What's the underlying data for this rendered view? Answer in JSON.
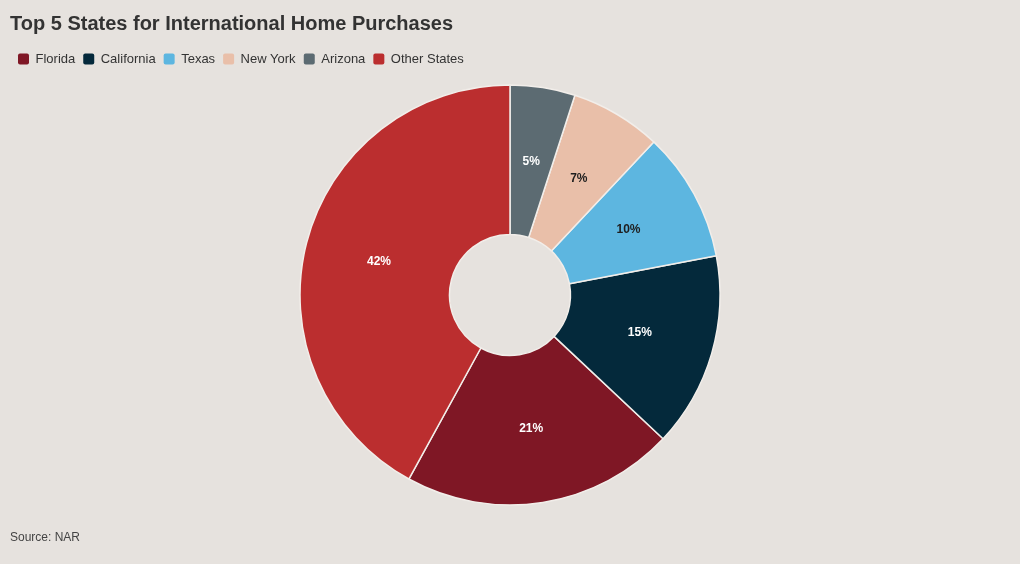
{
  "chart_data": {
    "type": "donut",
    "title": "Top 5 States for International Home Purchases",
    "categories": [
      "Florida",
      "California",
      "Texas",
      "New York",
      "Arizona",
      "Other States"
    ],
    "values": [
      21,
      15,
      10,
      7,
      5,
      42
    ],
    "colors": [
      "#7f1725",
      "#04293b",
      "#5db6e0",
      "#e9bfa9",
      "#5c6b72",
      "#bb2e2f"
    ],
    "value_labels": [
      "21%",
      "15%",
      "10%",
      "7%",
      "5%",
      "42%"
    ],
    "legend": "top left",
    "annotations": [
      "Source: NAR"
    ]
  }
}
